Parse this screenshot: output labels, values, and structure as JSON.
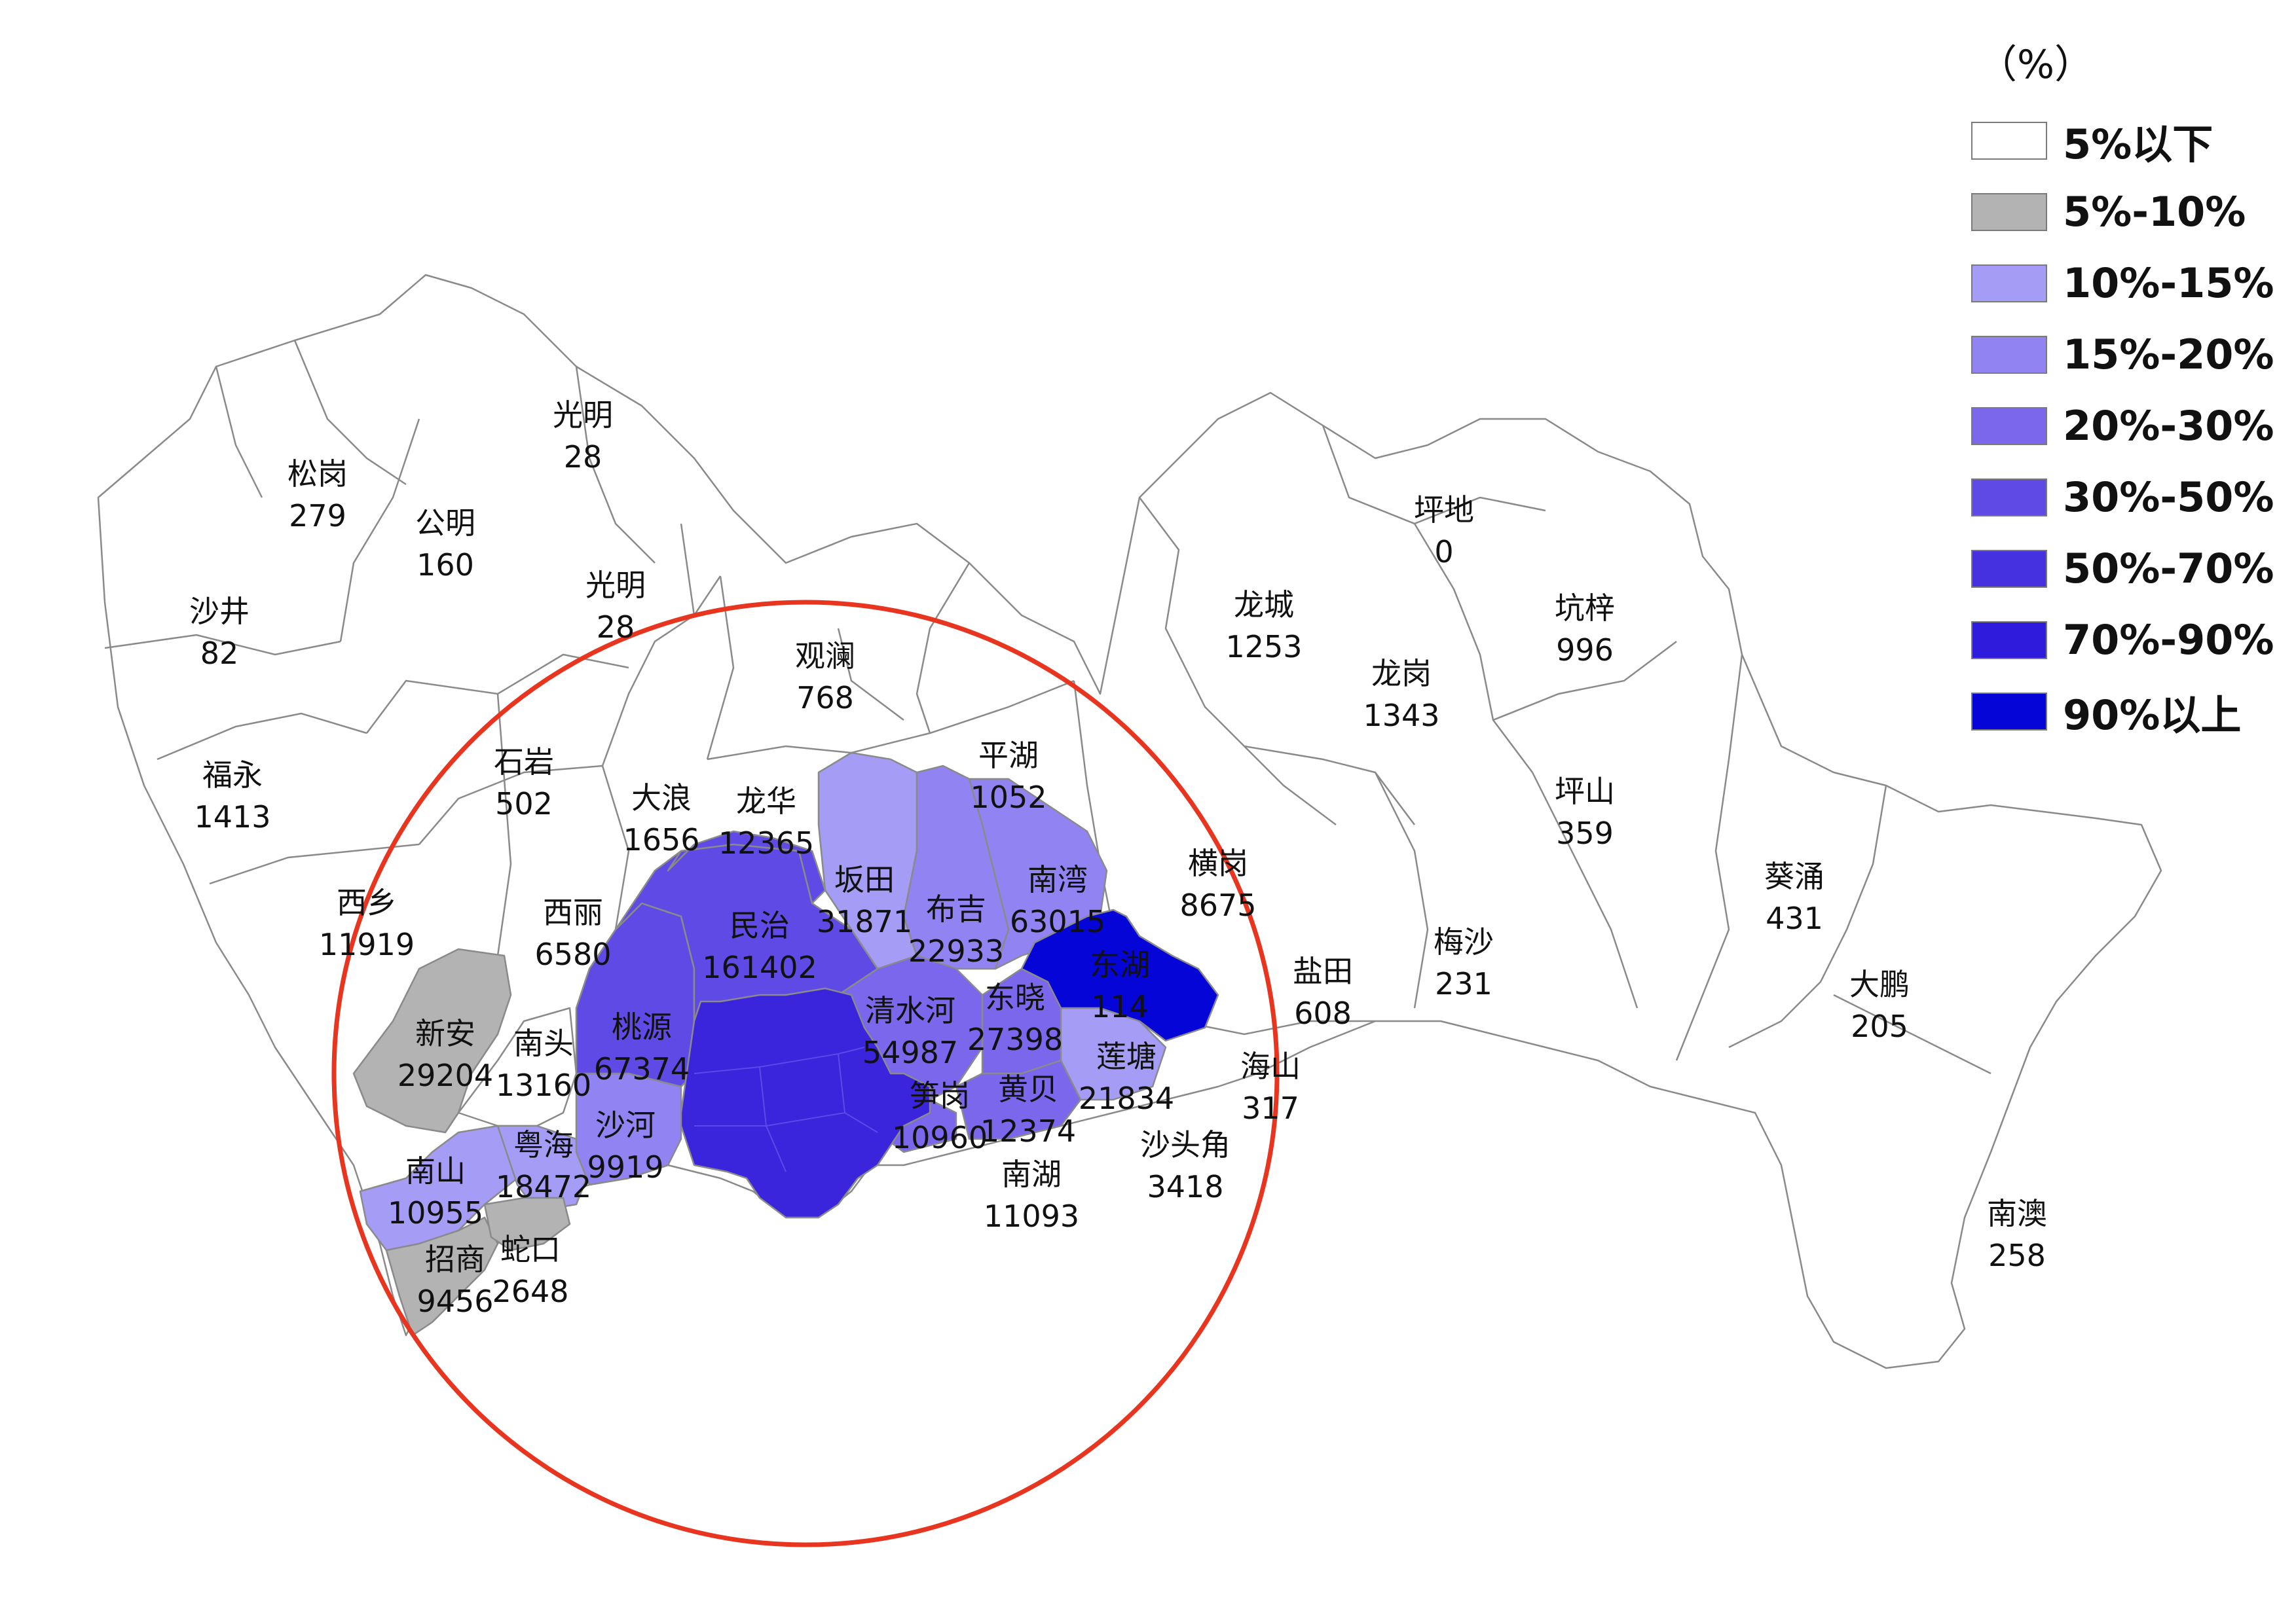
{
  "legend": {
    "unit": "（%）",
    "classes": [
      {
        "label": "5%以下",
        "color": "#ffffff"
      },
      {
        "label": "5%-10%",
        "color": "#b3b3b3"
      },
      {
        "label": "10%-15%",
        "color": "#a49cf5"
      },
      {
        "label": "15%-20%",
        "color": "#9283f2"
      },
      {
        "label": "20%-30%",
        "color": "#7a67ec"
      },
      {
        "label": "30%-50%",
        "color": "#604ae6"
      },
      {
        "label": "50%-70%",
        "color": "#4531e0"
      },
      {
        "label": "70%-90%",
        "color": "#2f1bdc"
      },
      {
        "label": "90%以上",
        "color": "#0505d8"
      }
    ]
  },
  "districts": [
    {
      "name": "光明",
      "value": "28",
      "class": 0
    },
    {
      "name": "松岗",
      "value": "279",
      "class": 0
    },
    {
      "name": "公明",
      "value": "160",
      "class": 0
    },
    {
      "name": "光明",
      "value": "28",
      "class": 0
    },
    {
      "name": "沙井",
      "value": "82",
      "class": 0
    },
    {
      "name": "福永",
      "value": "1413",
      "class": 0
    },
    {
      "name": "石岩",
      "value": "502",
      "class": 0
    },
    {
      "name": "大浪",
      "value": "1656",
      "class": 0
    },
    {
      "name": "观澜",
      "value": "768",
      "class": 0
    },
    {
      "name": "龙华",
      "value": "12365",
      "class": 5
    },
    {
      "name": "平湖",
      "value": "1052",
      "class": 0
    },
    {
      "name": "坂田",
      "value": "31871",
      "class": 2
    },
    {
      "name": "布吉",
      "value": "22933",
      "class": 3
    },
    {
      "name": "南湾",
      "value": "63015",
      "class": 3
    },
    {
      "name": "横岗",
      "value": "8675",
      "class": 0
    },
    {
      "name": "龙城",
      "value": "1253",
      "class": 0
    },
    {
      "name": "龙岗",
      "value": "1343",
      "class": 0
    },
    {
      "name": "坪地",
      "value": "0",
      "class": 0
    },
    {
      "name": "坑梓",
      "value": "996",
      "class": 0
    },
    {
      "name": "坪山",
      "value": "359",
      "class": 0
    },
    {
      "name": "西乡",
      "value": "11919",
      "class": 0
    },
    {
      "name": "西丽",
      "value": "6580",
      "class": 0
    },
    {
      "name": "民治",
      "value": "161402",
      "class": 5
    },
    {
      "name": "东湖",
      "value": "114",
      "class": 8
    },
    {
      "name": "盐田",
      "value": "608",
      "class": 0
    },
    {
      "name": "梅沙",
      "value": "231",
      "class": 0
    },
    {
      "name": "葵涌",
      "value": "431",
      "class": 0
    },
    {
      "name": "大鹏",
      "value": "205",
      "class": 0
    },
    {
      "name": "新安",
      "value": "29204",
      "class": 1
    },
    {
      "name": "南头",
      "value": "13160",
      "class": 0
    },
    {
      "name": "桃源",
      "value": "67374",
      "class": 5
    },
    {
      "name": "清水河",
      "value": "54987",
      "class": 4
    },
    {
      "name": "东晓",
      "value": "27398",
      "class": 4
    },
    {
      "name": "莲塘",
      "value": "21834",
      "class": 2
    },
    {
      "name": "海山",
      "value": "317",
      "class": 0
    },
    {
      "name": "黄贝",
      "value": "12374",
      "class": 4
    },
    {
      "name": "笋岗",
      "value": "10960",
      "class": 4
    },
    {
      "name": "沙河",
      "value": "9919",
      "class": 3
    },
    {
      "name": "粤海",
      "value": "18472",
      "class": 2
    },
    {
      "name": "南山",
      "value": "10955",
      "class": 2
    },
    {
      "name": "南湖",
      "value": "11093",
      "class": 0
    },
    {
      "name": "沙头角",
      "value": "3418",
      "class": 0
    },
    {
      "name": "招商",
      "value": "9456",
      "class": 1
    },
    {
      "name": "蛇口",
      "value": "2648",
      "class": 1
    },
    {
      "name": "南澳",
      "value": "258",
      "class": 0
    }
  ],
  "annotations": {
    "circle_color": "#e8351f",
    "highlight_color": "#f5e81c"
  }
}
